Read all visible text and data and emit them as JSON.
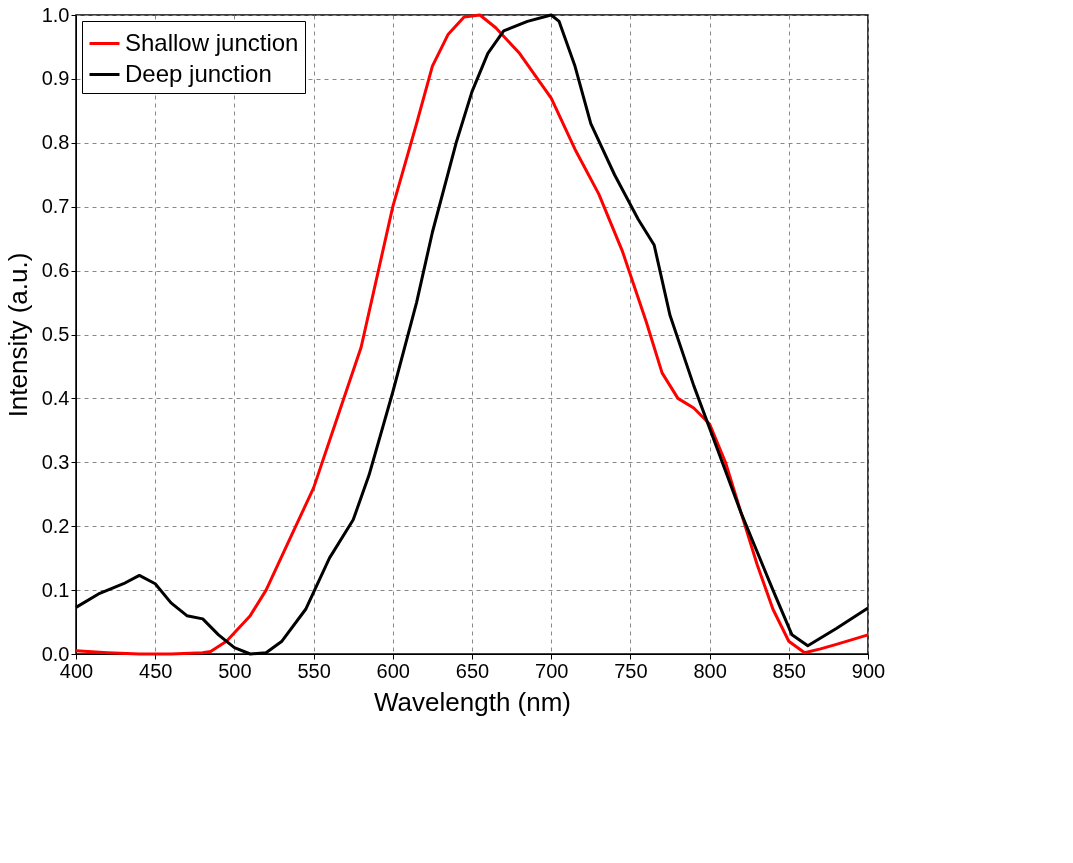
{
  "chart_data": {
    "type": "line",
    "xlabel": "Wavelength (nm)",
    "ylabel": "Intensity (a.u.)",
    "xlim": [
      400,
      900
    ],
    "xticks": [
      400,
      450,
      500,
      550,
      600,
      650,
      700,
      750,
      800,
      850,
      900
    ],
    "ylim": [
      0.0,
      1.0
    ],
    "yticks": [
      {
        "value": 0,
        "label": "0.0"
      },
      0.1,
      0.2,
      0.3,
      0.4,
      0.5,
      0.6,
      0.7,
      0.8,
      0.9,
      {
        "value": 1,
        "label": "1.0"
      }
    ],
    "grid": true,
    "legend": "top left",
    "line_style": "solid",
    "marker": "none",
    "series": [
      {
        "name": "Shallow junction",
        "color": "#ff0000",
        "x": [
          400,
          420,
          440,
          460,
          480,
          485,
          495,
          510,
          520,
          535,
          550,
          565,
          580,
          600,
          615,
          625,
          635,
          645,
          655,
          665,
          680,
          700,
          715,
          730,
          745,
          760,
          770,
          780,
          790,
          800,
          810,
          820,
          830,
          840,
          850,
          860,
          870,
          880,
          900
        ],
        "values": [
          0.005,
          0.002,
          0,
          0,
          0.002,
          0.004,
          0.02,
          0.06,
          0.1,
          0.18,
          0.26,
          0.37,
          0.48,
          0.7,
          0.83,
          0.92,
          0.97,
          0.997,
          1.0,
          0.98,
          0.94,
          0.87,
          0.79,
          0.72,
          0.63,
          0.52,
          0.44,
          0.4,
          0.385,
          0.36,
          0.3,
          0.22,
          0.14,
          0.07,
          0.02,
          0.002,
          0.008,
          0.015,
          0.03
        ]
      },
      {
        "name": "Deep junction",
        "color": "#000000",
        "x": [
          400,
          415,
          430,
          440,
          450,
          460,
          470,
          480,
          490,
          500,
          510,
          520,
          530,
          545,
          560,
          575,
          585,
          600,
          615,
          625,
          640,
          650,
          660,
          670,
          685,
          700,
          705,
          715,
          725,
          740,
          755,
          765,
          775,
          790,
          805,
          820,
          840,
          852,
          862,
          880,
          900
        ],
        "values": [
          0.073,
          0.095,
          0.11,
          0.123,
          0.11,
          0.08,
          0.06,
          0.055,
          0.03,
          0.01,
          0.0,
          0.002,
          0.02,
          0.07,
          0.15,
          0.21,
          0.28,
          0.41,
          0.55,
          0.66,
          0.8,
          0.88,
          0.94,
          0.975,
          0.99,
          1.0,
          0.99,
          0.92,
          0.83,
          0.75,
          0.68,
          0.64,
          0.53,
          0.42,
          0.32,
          0.22,
          0.1,
          0.03,
          0.013,
          0.04,
          0.072
        ]
      }
    ]
  }
}
